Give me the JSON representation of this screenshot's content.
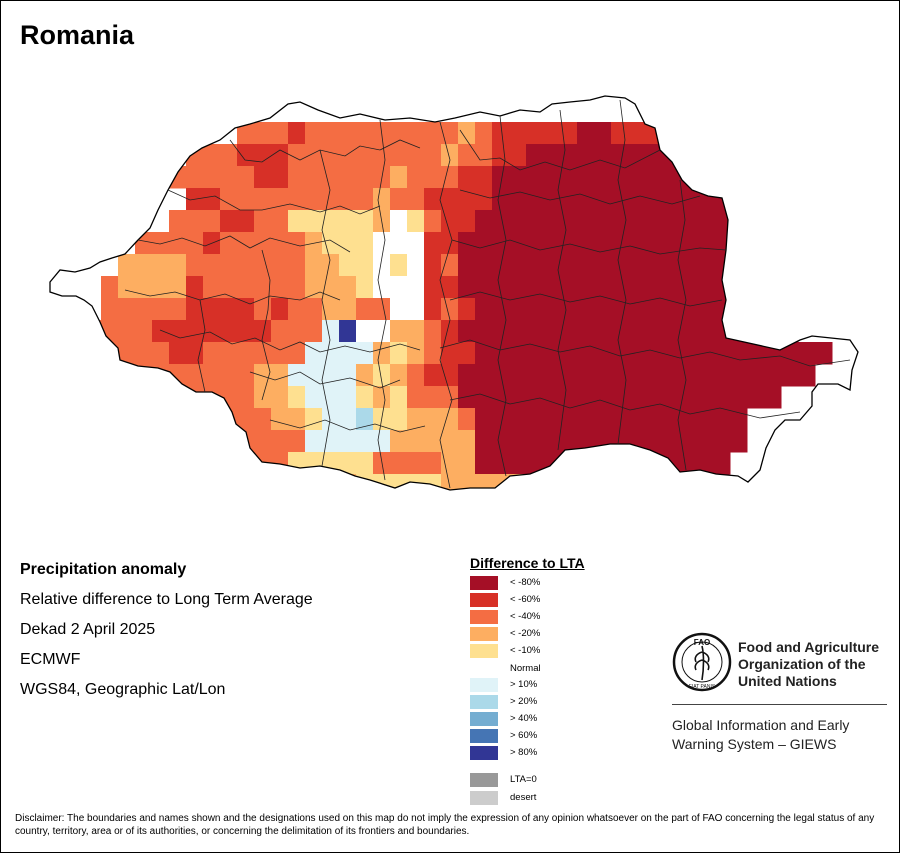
{
  "map": {
    "title": "Romania",
    "info_lines": [
      "Precipitation anomaly",
      "Relative difference to Long Term Average",
      "Dekad 2 April 2025",
      "ECMWF",
      "WGS84, Geographic Lat/Lon"
    ]
  },
  "legend": {
    "title": "Difference to LTA",
    "items": [
      {
        "label": "< -80%",
        "color": "#a50f26"
      },
      {
        "label": "< -60%",
        "color": "#d73027"
      },
      {
        "label": "< -40%",
        "color": "#f46d43"
      },
      {
        "label": "< -20%",
        "color": "#fdae61"
      },
      {
        "label": "< -10%",
        "color": "#fee090"
      },
      {
        "label": "Normal",
        "color": "#ffffff"
      },
      {
        "label": "> 10%",
        "color": "#e0f3f8"
      },
      {
        "label": "> 20%",
        "color": "#abd9e9"
      },
      {
        "label": "> 40%",
        "color": "#74add1"
      },
      {
        "label": "> 60%",
        "color": "#4575b4"
      },
      {
        "label": "> 80%",
        "color": "#313695"
      },
      {
        "label": "LTA=0",
        "color": "#999999"
      },
      {
        "label": "desert",
        "color": "#cccccc"
      }
    ]
  },
  "branding": {
    "org_name": [
      "Food and Agriculture",
      "Organization of the",
      "United Nations"
    ],
    "system_name": [
      "Global Information and Early",
      "Warning System – GIEWS"
    ],
    "logo_text": "FAO",
    "logo_motto": "FIAT PANIS"
  },
  "disclaimer": "Disclaimer: The boundaries and names shown and the designations used on this map do not imply the expression of any opinion whatsoever on the part of FAO concerning the legal status of any country, territory, area or of its authorities, or concerning the delimitation of its frontiers and boundaries."
}
